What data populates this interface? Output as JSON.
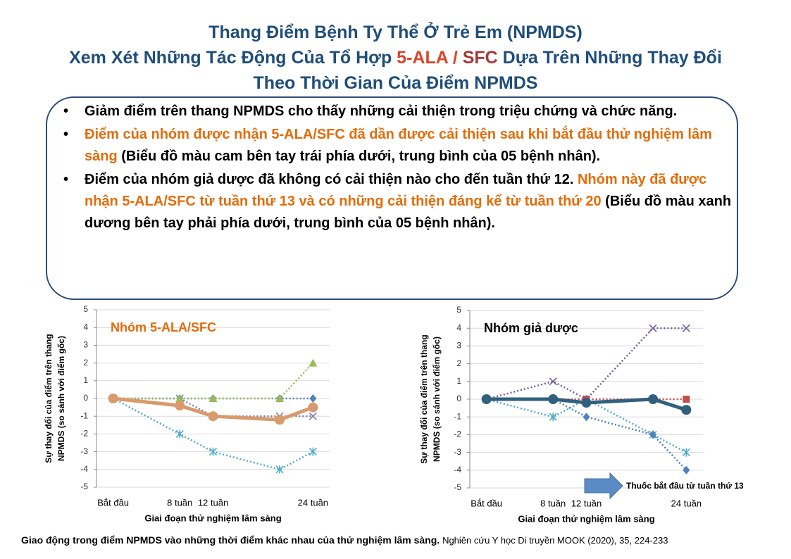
{
  "title": [
    "Thang Điểm Bệnh Ty Thể Ở Trẻ Em (NPMDS)",
    "Xem Xét Những Tác Động Của Tổ Hợp",
    "5-ALA",
    "/",
    "SFC",
    "Dựa Trên Những Thay Đổi Theo Thời Gian Của Điểm NPMDS"
  ],
  "title_colors": [
    "#1F4E79",
    "#1F4E79",
    "#D9462B",
    "#D9462B",
    "#A33A3A",
    "#1F4E79"
  ],
  "bullets": [
    [
      {
        "text": "Giảm điểm trên thang NPMDS cho thấy những cải thiện trong triệu chứng và chức năng.",
        "color": "#000000"
      }
    ],
    [
      {
        "text": "Điểm của nhóm được nhận 5-ALA/SFC đã dần được cải thiện sau khi bắt đầu thử nghiệm lâm sàng",
        "color": "#E36C09"
      },
      {
        "text": "(Biểu đồ màu cam bên tay trái phía dưới, trung bình của 05 bệnh nhân).",
        "color": "#000000"
      }
    ],
    [
      {
        "text": "Điểm của nhóm giả dược đã không có cải thiện nào cho đến tuần thứ 12.",
        "color": "#000000"
      },
      {
        "text": "Nhóm này đã được nhận 5-ALA/SFC từ tuần thứ 13 và có những cải thiện đáng kể từ tuần thứ 20",
        "color": "#E36C09"
      },
      {
        "text": "(Biểu đồ màu xanh dương bên tay phải phía dưới, trung bình của 05 bệnh nhân).",
        "color": "#000000"
      }
    ]
  ],
  "chart_data": [
    {
      "type": "line",
      "annotation": {
        "text": "Nhóm 5-ALA/SFC",
        "color": "#E36C09"
      },
      "x": [
        0,
        8,
        12,
        20,
        24
      ],
      "xlim": [
        -2,
        26
      ],
      "xticks": [
        {
          "value": 0,
          "label": "Bắt đầu"
        },
        {
          "value": 8,
          "label": "8 tuần"
        },
        {
          "value": 12,
          "label": "12 tuần"
        },
        {
          "value": 24,
          "label": "24 tuần"
        }
      ],
      "ylim": [
        -5,
        5
      ],
      "yticks": [
        -5,
        -4,
        -3,
        -2,
        -1,
        0,
        1,
        2,
        3,
        4,
        5
      ],
      "grid": true,
      "xlabel": "Giai đoạn thử nghiệm lâm sàng",
      "ylabel": [
        "Sự thay đổi của điểm trên thang",
        "NPMDS (so sánh với điểm gốc)"
      ],
      "series": [
        {
          "color": "#4BACC6",
          "marker": "asterisk",
          "style": "dotted",
          "values": [
            0,
            -2,
            -3,
            -4,
            -3
          ]
        },
        {
          "color": "#7F7FA8",
          "marker": "x",
          "style": "dotted",
          "values": [
            0,
            0,
            -1,
            -1,
            -1
          ]
        },
        {
          "color": "#4F81BD",
          "marker": "diamond",
          "style": "dotted",
          "values": [
            0,
            0,
            0,
            0,
            0
          ]
        },
        {
          "color": "#9BBB59",
          "marker": "triangle",
          "style": "dotted",
          "values": [
            0,
            0,
            0,
            0,
            2
          ]
        },
        {
          "color": "#D99A6C",
          "marker": "circle",
          "style": "solid",
          "values": [
            0,
            -0.4,
            -1,
            -1.2,
            -0.5
          ]
        }
      ]
    },
    {
      "type": "line",
      "annotation": {
        "text": "Nhóm giả dược",
        "color": "#000000"
      },
      "note": "Thuốc bắt đầu từ tuần thứ 13",
      "x": [
        0,
        8,
        12,
        20,
        24
      ],
      "xlim": [
        -2,
        26
      ],
      "xticks": [
        {
          "value": 0,
          "label": "Bắt đầu"
        },
        {
          "value": 8,
          "label": "8 tuần"
        },
        {
          "value": 12,
          "label": "12 tuần"
        },
        {
          "value": 24,
          "label": "24 tuần"
        }
      ],
      "ylim": [
        -5,
        5
      ],
      "yticks": [
        -5,
        -4,
        -3,
        -2,
        -1,
        0,
        1,
        2,
        3,
        4,
        5
      ],
      "grid": true,
      "xlabel": "Giai đoạn thử nghiệm lâm sàng",
      "ylabel": [
        "Sự thay đổi của điểm trên thang",
        "NPMDS (so sánh với điểm gốc)"
      ],
      "series": [
        {
          "color": "#6E5E9E",
          "marker": "x",
          "style": "dotted",
          "values": [
            0,
            1,
            0,
            4,
            4
          ]
        },
        {
          "color": "#4BACC6",
          "marker": "asterisk",
          "style": "dotted",
          "values": [
            0,
            -1,
            0,
            -2,
            -3
          ]
        },
        {
          "color": "#4F81BD",
          "marker": "diamond",
          "style": "dotted",
          "values": [
            0,
            0,
            -1,
            -2,
            -4
          ]
        },
        {
          "color": "#C0504D",
          "marker": "square",
          "style": "dotted",
          "values": [
            0,
            0,
            0,
            0,
            0
          ]
        },
        {
          "color": "#31607F",
          "marker": "circle",
          "style": "solid",
          "values": [
            0,
            0,
            -0.2,
            0,
            -0.6
          ]
        }
      ]
    }
  ],
  "caption": [
    "Giao động trong điểm NPMDS vào những thời điểm khác nhau của thử nghiệm lâm sàng.",
    "Nghiên cứu Y học Di truyền MOOK (2020), 35, 224-233"
  ]
}
